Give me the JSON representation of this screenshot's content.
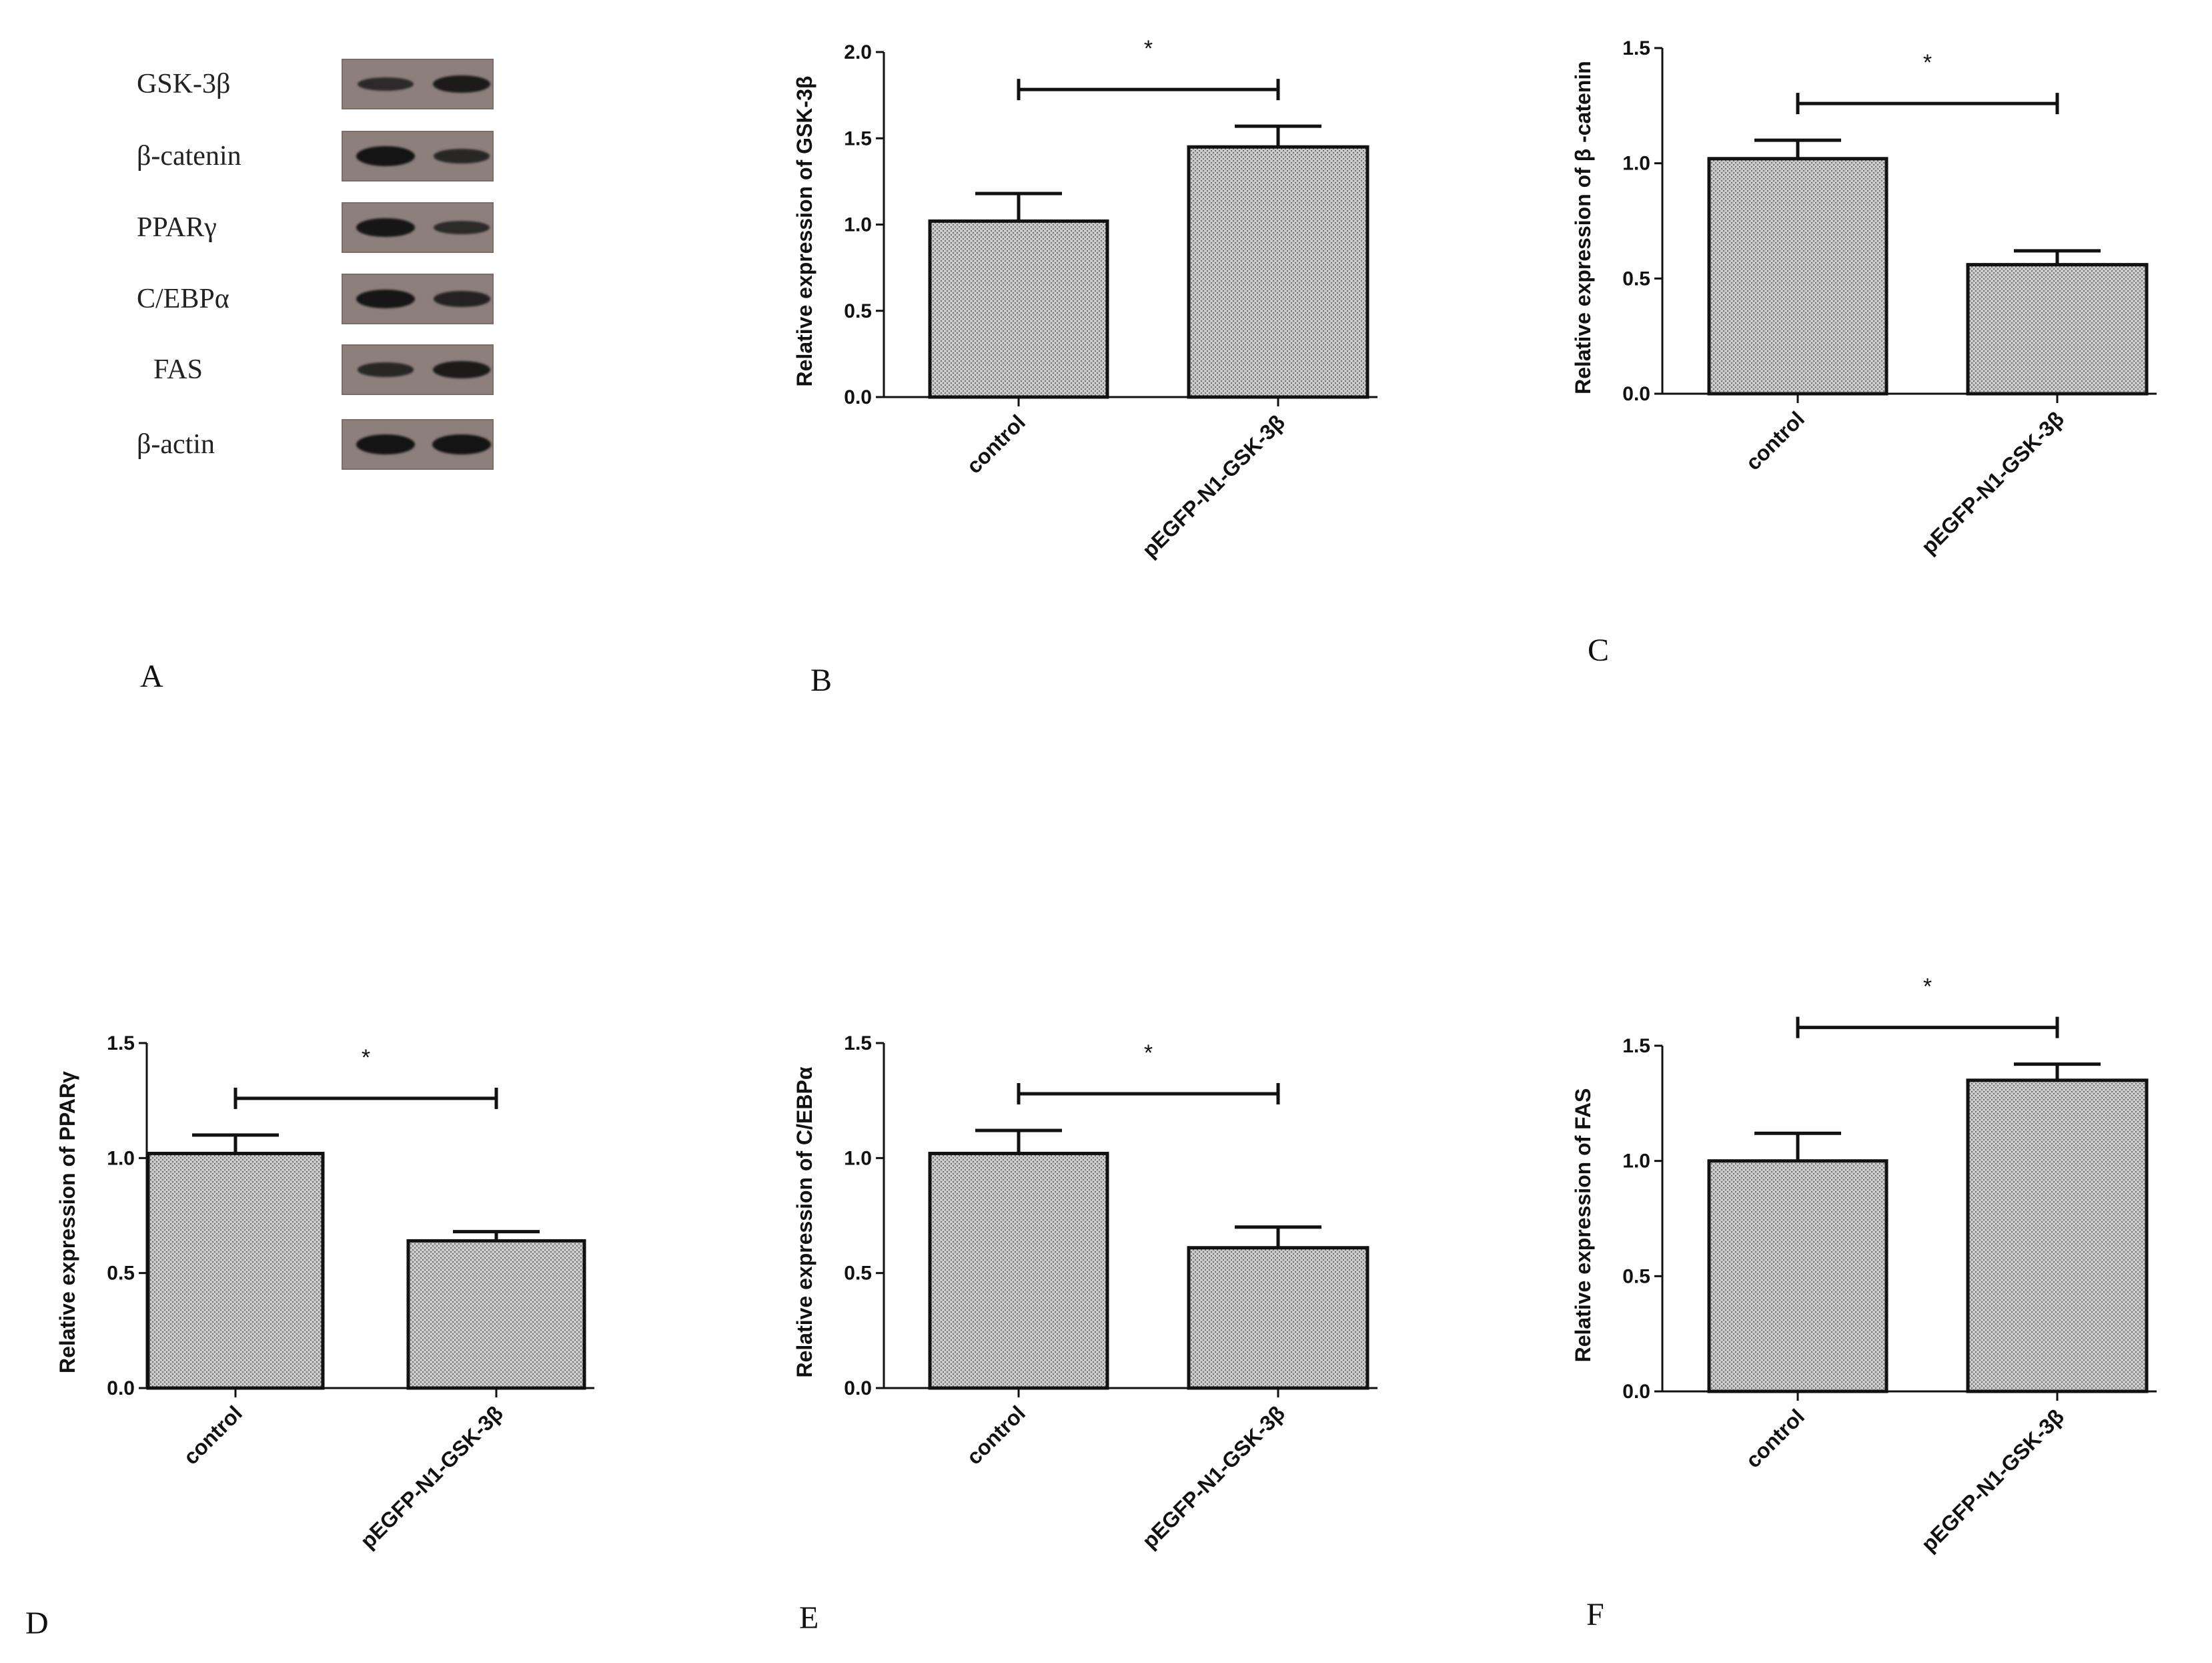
{
  "blot": {
    "rows": [
      {
        "label": "GSK-3β",
        "lanes": [
          0.55,
          0.85
        ]
      },
      {
        "label": "β-catenin",
        "lanes": [
          1.0,
          0.6
        ]
      },
      {
        "label": "PPARγ",
        "lanes": [
          0.95,
          0.55
        ]
      },
      {
        "label": "C/EBPα",
        "lanes": [
          0.95,
          0.7
        ]
      },
      {
        "label": "FAS",
        "lanes": [
          0.6,
          0.85
        ]
      },
      {
        "label": "β-actin",
        "lanes": [
          1.0,
          1.0
        ]
      }
    ],
    "panel_letter": "A"
  },
  "colors": {
    "bar_fill": "#bdbdbd",
    "bar_stroke": "#111111",
    "band": "#141414",
    "blot_bg": "#8d7f7c"
  },
  "chart_data": [
    {
      "panel": "B",
      "type": "bar",
      "categories": [
        "control",
        "pEGFP-N1-GSK-3β"
      ],
      "values": [
        1.02,
        1.45
      ],
      "errors": [
        0.16,
        0.12
      ],
      "ylabel": "Relative expression of GSK-3β",
      "ylim": [
        0,
        2.0
      ],
      "yticks": [
        "0.0",
        "0.5",
        "1.0",
        "1.5",
        "2.0"
      ],
      "significance": "*",
      "grid": false
    },
    {
      "panel": "C",
      "type": "bar",
      "categories": [
        "control",
        "pEGFP-N1-GSK-3β"
      ],
      "values": [
        1.02,
        0.56
      ],
      "errors": [
        0.08,
        0.06
      ],
      "ylabel": "Relative expression of β -catenin",
      "ylim": [
        0,
        1.5
      ],
      "yticks": [
        "0.0",
        "0.5",
        "1.0",
        "1.5"
      ],
      "significance": "*",
      "grid": false
    },
    {
      "panel": "D",
      "type": "bar",
      "categories": [
        "control",
        "pEGFP-N1-GSK-3β"
      ],
      "values": [
        1.02,
        0.64
      ],
      "errors": [
        0.08,
        0.04
      ],
      "ylabel": "Relative expression of PPARγ",
      "ylim": [
        0,
        1.5
      ],
      "yticks": [
        "0.0",
        "0.5",
        "1.0",
        "1.5"
      ],
      "significance": "*",
      "grid": false
    },
    {
      "panel": "E",
      "type": "bar",
      "categories": [
        "control",
        "pEGFP-N1-GSK-3β"
      ],
      "values": [
        1.02,
        0.61
      ],
      "errors": [
        0.1,
        0.09
      ],
      "ylabel": "Relative expression of C/EBPα",
      "ylim": [
        0,
        1.5
      ],
      "yticks": [
        "0.0",
        "0.5",
        "1.0",
        "1.5"
      ],
      "significance": "*",
      "grid": false
    },
    {
      "panel": "F",
      "type": "bar",
      "categories": [
        "control",
        "pEGFP-N1-GSK-3β"
      ],
      "values": [
        1.0,
        1.35
      ],
      "errors": [
        0.12,
        0.07
      ],
      "ylabel": "Relative expression of FAS",
      "ylim": [
        0,
        1.5
      ],
      "yticks": [
        "0.0",
        "0.5",
        "1.0",
        "1.5"
      ],
      "significance": "*",
      "grid": false
    }
  ]
}
